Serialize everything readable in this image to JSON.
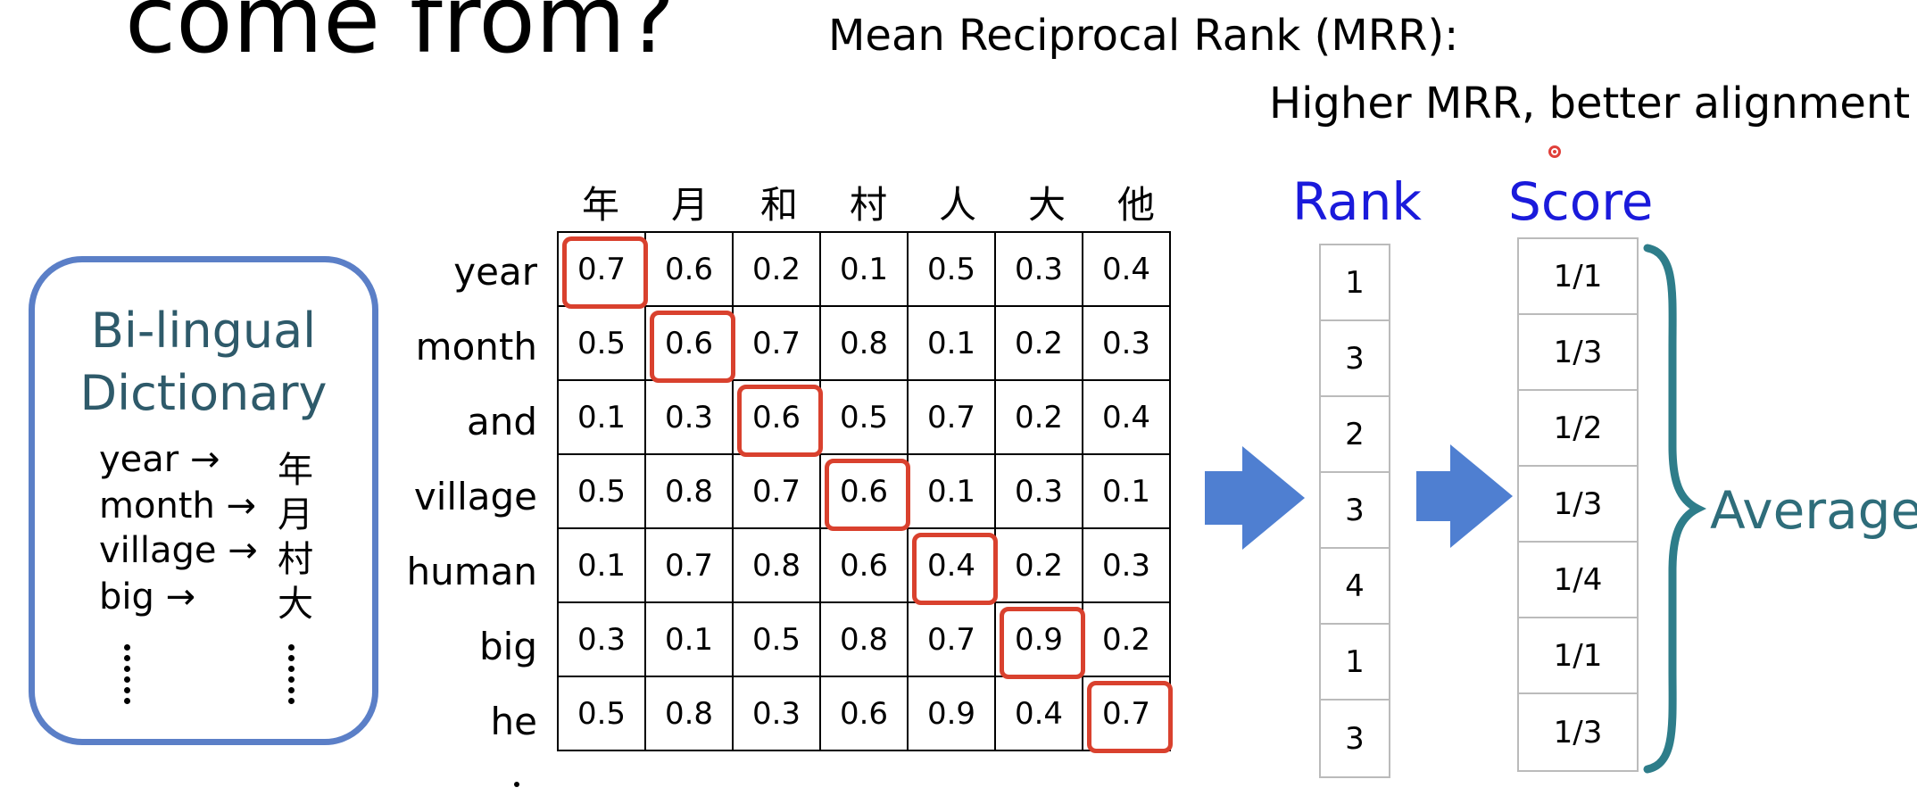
{
  "slide": {
    "title": "come from?",
    "mrr_heading": "Mean Reciprocal Rank (MRR):",
    "mrr_note": "Higher MRR, better alignment"
  },
  "dictionary": {
    "title_line1": "Bi-lingual",
    "title_line2": "Dictionary",
    "entries": [
      {
        "en": "year →",
        "zh": "年"
      },
      {
        "en": "month →",
        "zh": "月"
      },
      {
        "en": "village →",
        "zh": "村"
      },
      {
        "en": "big →",
        "zh": "大"
      }
    ]
  },
  "matrix": {
    "columns": [
      "年",
      "月",
      "和",
      "村",
      "人",
      "大",
      "他"
    ],
    "rows": [
      {
        "label": "year",
        "values": [
          "0.7",
          "0.6",
          "0.2",
          "0.1",
          "0.5",
          "0.3",
          "0.4"
        ]
      },
      {
        "label": "month",
        "values": [
          "0.5",
          "0.6",
          "0.7",
          "0.8",
          "0.1",
          "0.2",
          "0.3"
        ]
      },
      {
        "label": "and",
        "values": [
          "0.1",
          "0.3",
          "0.6",
          "0.5",
          "0.7",
          "0.2",
          "0.4"
        ]
      },
      {
        "label": "village",
        "values": [
          "0.5",
          "0.8",
          "0.7",
          "0.6",
          "0.1",
          "0.3",
          "0.1"
        ]
      },
      {
        "label": "human",
        "values": [
          "0.1",
          "0.7",
          "0.8",
          "0.6",
          "0.4",
          "0.2",
          "0.3"
        ]
      },
      {
        "label": "big",
        "values": [
          "0.3",
          "0.1",
          "0.5",
          "0.8",
          "0.7",
          "0.9",
          "0.2"
        ]
      },
      {
        "label": "he",
        "values": [
          "0.5",
          "0.8",
          "0.3",
          "0.6",
          "0.9",
          "0.4",
          "0.7"
        ]
      }
    ],
    "highlight_color": "#d9412e"
  },
  "rank": {
    "title": "Rank",
    "values": [
      "1",
      "3",
      "2",
      "3",
      "4",
      "1",
      "3"
    ]
  },
  "score": {
    "title": "Score",
    "values": [
      "1/1",
      "1/3",
      "1/2",
      "1/3",
      "1/4",
      "1/1",
      "1/3"
    ]
  },
  "average_label": "Average",
  "colors": {
    "arrow": "#4f7fd1",
    "dict_border": "#5b7fc7",
    "rank_score_title": "#1a1adb",
    "brace": "#2e7d8a"
  }
}
